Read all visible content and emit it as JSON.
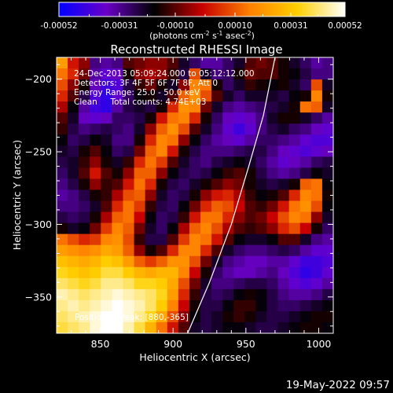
{
  "chart_data": {
    "type": "heatmap",
    "title": "Reconstructed RHESSI Image",
    "xlabel": "Heliocentric X (arcsec)",
    "ylabel": "Heliocentric Y (arcsec)",
    "xlim": [
      820,
      1010
    ],
    "ylim": [
      -375,
      -185
    ],
    "x_ticks": [
      850,
      900,
      950,
      1000
    ],
    "y_ticks": [
      -350,
      -300,
      -250,
      -200
    ],
    "colorbar": {
      "range": [
        -0.00052,
        0.00052
      ],
      "tick_labels": [
        "-0.00052",
        "-0.00031",
        "-0.00010",
        "0.00010",
        "0.00031",
        "0.00052"
      ],
      "label_parts": [
        "(photons cm",
        "-2",
        " s",
        "-1",
        " asec",
        "-2",
        ")"
      ],
      "colors": [
        "#0000ff",
        "#6a00c8",
        "#000000",
        "#c80000",
        "#ff8000",
        "#ffd000",
        "#ffffff"
      ]
    },
    "info_lines": [
      "24-Dec-2013 05:09:24.000 to 05:12:12.000",
      "Detectors: 3F 4F 5F 6F 7F 8F, Att 0",
      "Energy Range: 25.0 - 50.0 keV",
      "Clean     Total counts: 4.74E+03"
    ],
    "position_label": "Position of Peak: [880,-365]",
    "peak": [
      880,
      -365
    ],
    "limb_curve": [
      [
        910,
        -375
      ],
      [
        925,
        -340
      ],
      [
        940,
        -300
      ],
      [
        952,
        -260
      ],
      [
        962,
        -225
      ],
      [
        970,
        -185
      ]
    ],
    "image_grid": {
      "x0": 820,
      "y0": -185,
      "dx": 7.6,
      "dy": 7.6,
      "rows": [
        [
          0.45,
          0.05,
          -0.1,
          -0.55,
          -0.6,
          -0.55,
          -0.2,
          -0.15,
          -0.1,
          -0.1,
          -0.2,
          -0.4,
          -0.5,
          -0.6,
          -0.6,
          -0.5,
          -0.4,
          -0.2,
          -0.15,
          -0.2,
          -0.3,
          -0.4,
          -0.5,
          -0.6,
          -0.55
        ],
        [
          0.3,
          0.1,
          -0.15,
          -0.6,
          -0.7,
          -0.65,
          -0.3,
          -0.1,
          -0.05,
          -0.1,
          -0.25,
          -0.45,
          0.2,
          -0.4,
          -0.55,
          -0.5,
          -0.3,
          -0.15,
          -0.2,
          -0.2,
          -0.3,
          -0.35,
          -0.45,
          -0.55,
          -0.55
        ],
        [
          0.2,
          -0.1,
          -0.3,
          -0.65,
          -0.8,
          -0.75,
          -0.45,
          -0.25,
          -0.15,
          -0.3,
          -0.4,
          -0.1,
          0.35,
          0.3,
          -0.3,
          -0.5,
          -0.4,
          -0.25,
          -0.3,
          -0.35,
          -0.3,
          -0.4,
          -0.5,
          0.2,
          -0.4
        ],
        [
          0.1,
          -0.2,
          -0.45,
          -0.75,
          -0.85,
          -0.7,
          -0.5,
          -0.35,
          -0.3,
          -0.4,
          -0.2,
          0.25,
          0.4,
          0.2,
          -0.2,
          -0.4,
          -0.5,
          -0.4,
          -0.4,
          -0.4,
          -0.45,
          -0.35,
          -0.3,
          0.35,
          -0.3
        ],
        [
          -0.05,
          -0.35,
          -0.6,
          -0.8,
          -0.85,
          -0.6,
          -0.45,
          -0.4,
          -0.45,
          -0.3,
          0.1,
          0.4,
          0.35,
          -0.15,
          -0.4,
          -0.55,
          -0.6,
          -0.55,
          -0.5,
          -0.45,
          -0.4,
          -0.3,
          0.3,
          0.25,
          -0.4
        ],
        [
          -0.2,
          -0.4,
          -0.65,
          -0.7,
          -0.65,
          -0.5,
          -0.5,
          -0.45,
          -0.3,
          0.05,
          0.3,
          0.35,
          0.1,
          -0.3,
          -0.5,
          -0.65,
          -0.7,
          -0.65,
          -0.55,
          -0.4,
          -0.3,
          -0.3,
          -0.4,
          -0.5,
          -0.6
        ],
        [
          -0.25,
          -0.45,
          -0.55,
          -0.5,
          -0.45,
          -0.5,
          -0.55,
          -0.4,
          -0.1,
          0.25,
          0.4,
          0.2,
          -0.2,
          -0.4,
          -0.55,
          -0.7,
          -0.8,
          -0.7,
          -0.55,
          -0.45,
          -0.4,
          -0.5,
          -0.55,
          -0.65,
          -0.7
        ],
        [
          -0.35,
          -0.5,
          -0.45,
          -0.35,
          -0.4,
          -0.55,
          -0.55,
          -0.3,
          0.1,
          0.35,
          0.3,
          -0.1,
          -0.35,
          -0.5,
          -0.6,
          -0.65,
          -0.7,
          -0.6,
          -0.5,
          -0.5,
          -0.55,
          -0.6,
          -0.7,
          -0.75,
          -0.75
        ],
        [
          -0.4,
          -0.45,
          -0.3,
          -0.2,
          -0.35,
          -0.5,
          -0.45,
          -0.15,
          0.25,
          0.35,
          0.05,
          -0.3,
          -0.45,
          -0.55,
          -0.55,
          -0.55,
          -0.5,
          -0.45,
          -0.45,
          -0.55,
          -0.65,
          -0.7,
          -0.75,
          -0.7,
          -0.65
        ],
        [
          -0.45,
          -0.4,
          -0.25,
          -0.1,
          -0.3,
          -0.4,
          -0.25,
          0.1,
          0.3,
          0.15,
          -0.2,
          -0.4,
          -0.5,
          -0.55,
          -0.45,
          -0.4,
          -0.35,
          -0.4,
          -0.5,
          -0.6,
          -0.7,
          -0.65,
          -0.6,
          -0.5,
          -0.45
        ],
        [
          -0.5,
          -0.4,
          -0.2,
          0.05,
          -0.2,
          -0.3,
          -0.1,
          0.25,
          0.25,
          -0.1,
          -0.35,
          -0.45,
          -0.5,
          -0.45,
          -0.35,
          -0.25,
          -0.2,
          -0.3,
          -0.45,
          -0.55,
          -0.6,
          -0.55,
          -0.45,
          -0.35,
          -0.4
        ],
        [
          -0.55,
          -0.45,
          -0.3,
          -0.1,
          -0.25,
          -0.2,
          0.05,
          0.3,
          0.1,
          -0.3,
          -0.45,
          -0.5,
          -0.4,
          -0.3,
          -0.2,
          -0.1,
          -0.15,
          -0.3,
          -0.4,
          -0.45,
          -0.4,
          -0.3,
          0.25,
          0.3,
          -0.35
        ],
        [
          -0.6,
          -0.55,
          -0.45,
          -0.3,
          -0.25,
          -0.05,
          0.2,
          0.25,
          -0.1,
          -0.4,
          -0.5,
          -0.45,
          -0.3,
          -0.1,
          0.05,
          0.1,
          -0.05,
          -0.25,
          -0.35,
          -0.3,
          -0.2,
          0.1,
          0.35,
          0.3,
          -0.3
        ],
        [
          -0.55,
          -0.55,
          -0.5,
          -0.4,
          -0.2,
          0.1,
          0.3,
          0.15,
          -0.25,
          -0.45,
          -0.5,
          -0.35,
          -0.15,
          0.1,
          0.25,
          0.2,
          0.0,
          -0.2,
          -0.25,
          -0.15,
          0.05,
          0.3,
          0.4,
          0.2,
          -0.35
        ],
        [
          -0.45,
          -0.5,
          -0.45,
          -0.3,
          -0.05,
          0.25,
          0.3,
          0.0,
          -0.35,
          -0.5,
          -0.45,
          -0.25,
          0.05,
          0.3,
          0.3,
          0.1,
          -0.1,
          -0.2,
          -0.15,
          0.0,
          0.2,
          0.35,
          0.3,
          -0.1,
          -0.4
        ],
        [
          -0.3,
          -0.4,
          -0.35,
          -0.15,
          0.15,
          0.35,
          0.25,
          -0.15,
          -0.4,
          -0.5,
          -0.35,
          -0.05,
          0.25,
          0.35,
          0.2,
          -0.05,
          -0.2,
          -0.25,
          -0.2,
          -0.1,
          0.1,
          0.2,
          0.0,
          -0.3,
          -0.5
        ],
        [
          0.3,
          0.2,
          0.1,
          0.15,
          0.35,
          0.4,
          0.2,
          -0.25,
          -0.45,
          -0.45,
          -0.2,
          0.15,
          0.35,
          0.3,
          0.05,
          -0.2,
          -0.35,
          -0.4,
          -0.4,
          -0.35,
          -0.2,
          -0.2,
          -0.4,
          -0.55,
          -0.6
        ],
        [
          0.45,
          0.4,
          0.35,
          0.4,
          0.5,
          0.45,
          0.25,
          -0.1,
          -0.3,
          -0.2,
          0.1,
          0.35,
          0.35,
          0.1,
          -0.2,
          -0.4,
          -0.5,
          -0.55,
          -0.55,
          -0.5,
          -0.45,
          -0.5,
          -0.6,
          -0.7,
          -0.7
        ],
        [
          0.6,
          0.55,
          0.5,
          0.55,
          0.65,
          0.6,
          0.45,
          0.25,
          0.15,
          0.25,
          0.4,
          0.4,
          0.2,
          -0.15,
          -0.4,
          -0.55,
          -0.6,
          -0.65,
          -0.65,
          -0.6,
          -0.6,
          -0.7,
          -0.8,
          -0.8,
          -0.75
        ],
        [
          0.7,
          0.65,
          0.6,
          0.65,
          0.75,
          0.75,
          0.65,
          0.55,
          0.5,
          0.55,
          0.55,
          0.35,
          0.0,
          -0.3,
          -0.5,
          -0.6,
          -0.65,
          -0.65,
          -0.6,
          -0.55,
          -0.65,
          -0.75,
          -0.85,
          -0.8,
          -0.7
        ],
        [
          0.8,
          0.75,
          0.7,
          0.75,
          0.85,
          0.85,
          0.8,
          0.7,
          0.7,
          0.65,
          0.5,
          0.2,
          -0.15,
          -0.4,
          -0.55,
          -0.55,
          -0.5,
          -0.45,
          -0.45,
          -0.5,
          -0.6,
          -0.7,
          -0.75,
          -0.7,
          -0.6
        ],
        [
          0.9,
          0.85,
          0.8,
          0.85,
          0.9,
          0.95,
          0.9,
          0.85,
          0.8,
          0.7,
          0.45,
          0.1,
          -0.25,
          -0.45,
          -0.5,
          -0.45,
          -0.35,
          -0.3,
          -0.35,
          -0.45,
          -0.55,
          -0.6,
          -0.6,
          -0.55,
          -0.45
        ],
        [
          0.85,
          0.9,
          0.85,
          0.9,
          0.95,
          1.0,
          0.95,
          0.9,
          0.8,
          0.65,
          0.35,
          0.0,
          -0.3,
          -0.45,
          -0.45,
          -0.35,
          -0.25,
          -0.25,
          -0.35,
          -0.45,
          -0.5,
          -0.5,
          -0.45,
          -0.4,
          -0.35
        ],
        [
          0.8,
          0.85,
          0.9,
          0.95,
          1.0,
          1.0,
          0.95,
          0.85,
          0.7,
          0.5,
          0.2,
          -0.1,
          -0.35,
          -0.45,
          -0.4,
          -0.3,
          -0.25,
          -0.3,
          -0.4,
          -0.45,
          -0.45,
          -0.4,
          -0.35,
          -0.3,
          -0.3
        ],
        [
          0.75,
          0.8,
          0.85,
          0.95,
          1.0,
          1.0,
          0.9,
          0.75,
          0.55,
          0.3,
          0.05,
          -0.2,
          -0.4,
          -0.45,
          -0.4,
          -0.35,
          -0.35,
          -0.4,
          -0.45,
          -0.45,
          -0.4,
          -0.35,
          -0.3,
          -0.3,
          -0.35
        ]
      ]
    }
  },
  "footer": {
    "timestamp": "19-May-2022 09:57"
  }
}
